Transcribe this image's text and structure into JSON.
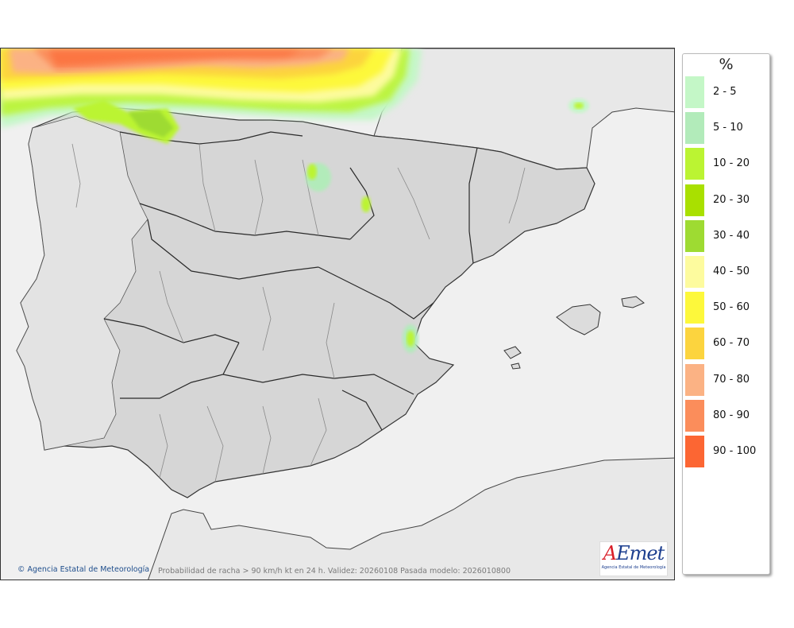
{
  "legend": {
    "title": "%",
    "items": [
      {
        "label": "2 - 5",
        "color": "#c4f7c7"
      },
      {
        "label": "5 - 10",
        "color": "#b2ebba"
      },
      {
        "label": "10 - 20",
        "color": "#bbf432"
      },
      {
        "label": "20 - 30",
        "color": "#a9e000"
      },
      {
        "label": "30 - 40",
        "color": "#9edb32"
      },
      {
        "label": "40 - 50",
        "color": "#fdfb9e"
      },
      {
        "label": "50 - 60",
        "color": "#fdf83b"
      },
      {
        "label": "60 - 70",
        "color": "#fcd43e"
      },
      {
        "label": "70 - 80",
        "color": "#fbb284"
      },
      {
        "label": "80 - 90",
        "color": "#fb8d5b"
      },
      {
        "label": "90 - 100",
        "color": "#fc6633"
      }
    ]
  },
  "credit": "Agencia Estatal de Meteorología",
  "caption": "Probabilidad de racha > 90 km/h kt en 24 h. Validez: 20260108 Pasada modelo: 2026010800",
  "logo": {
    "brand": "AEmet",
    "subtitle": "Agencia Estatal de Meteorología"
  },
  "colors": {
    "land": "#dcdcdc",
    "sea": "#f0f0f0",
    "border_dark": "#333333",
    "border_light": "#8a8a8a"
  }
}
